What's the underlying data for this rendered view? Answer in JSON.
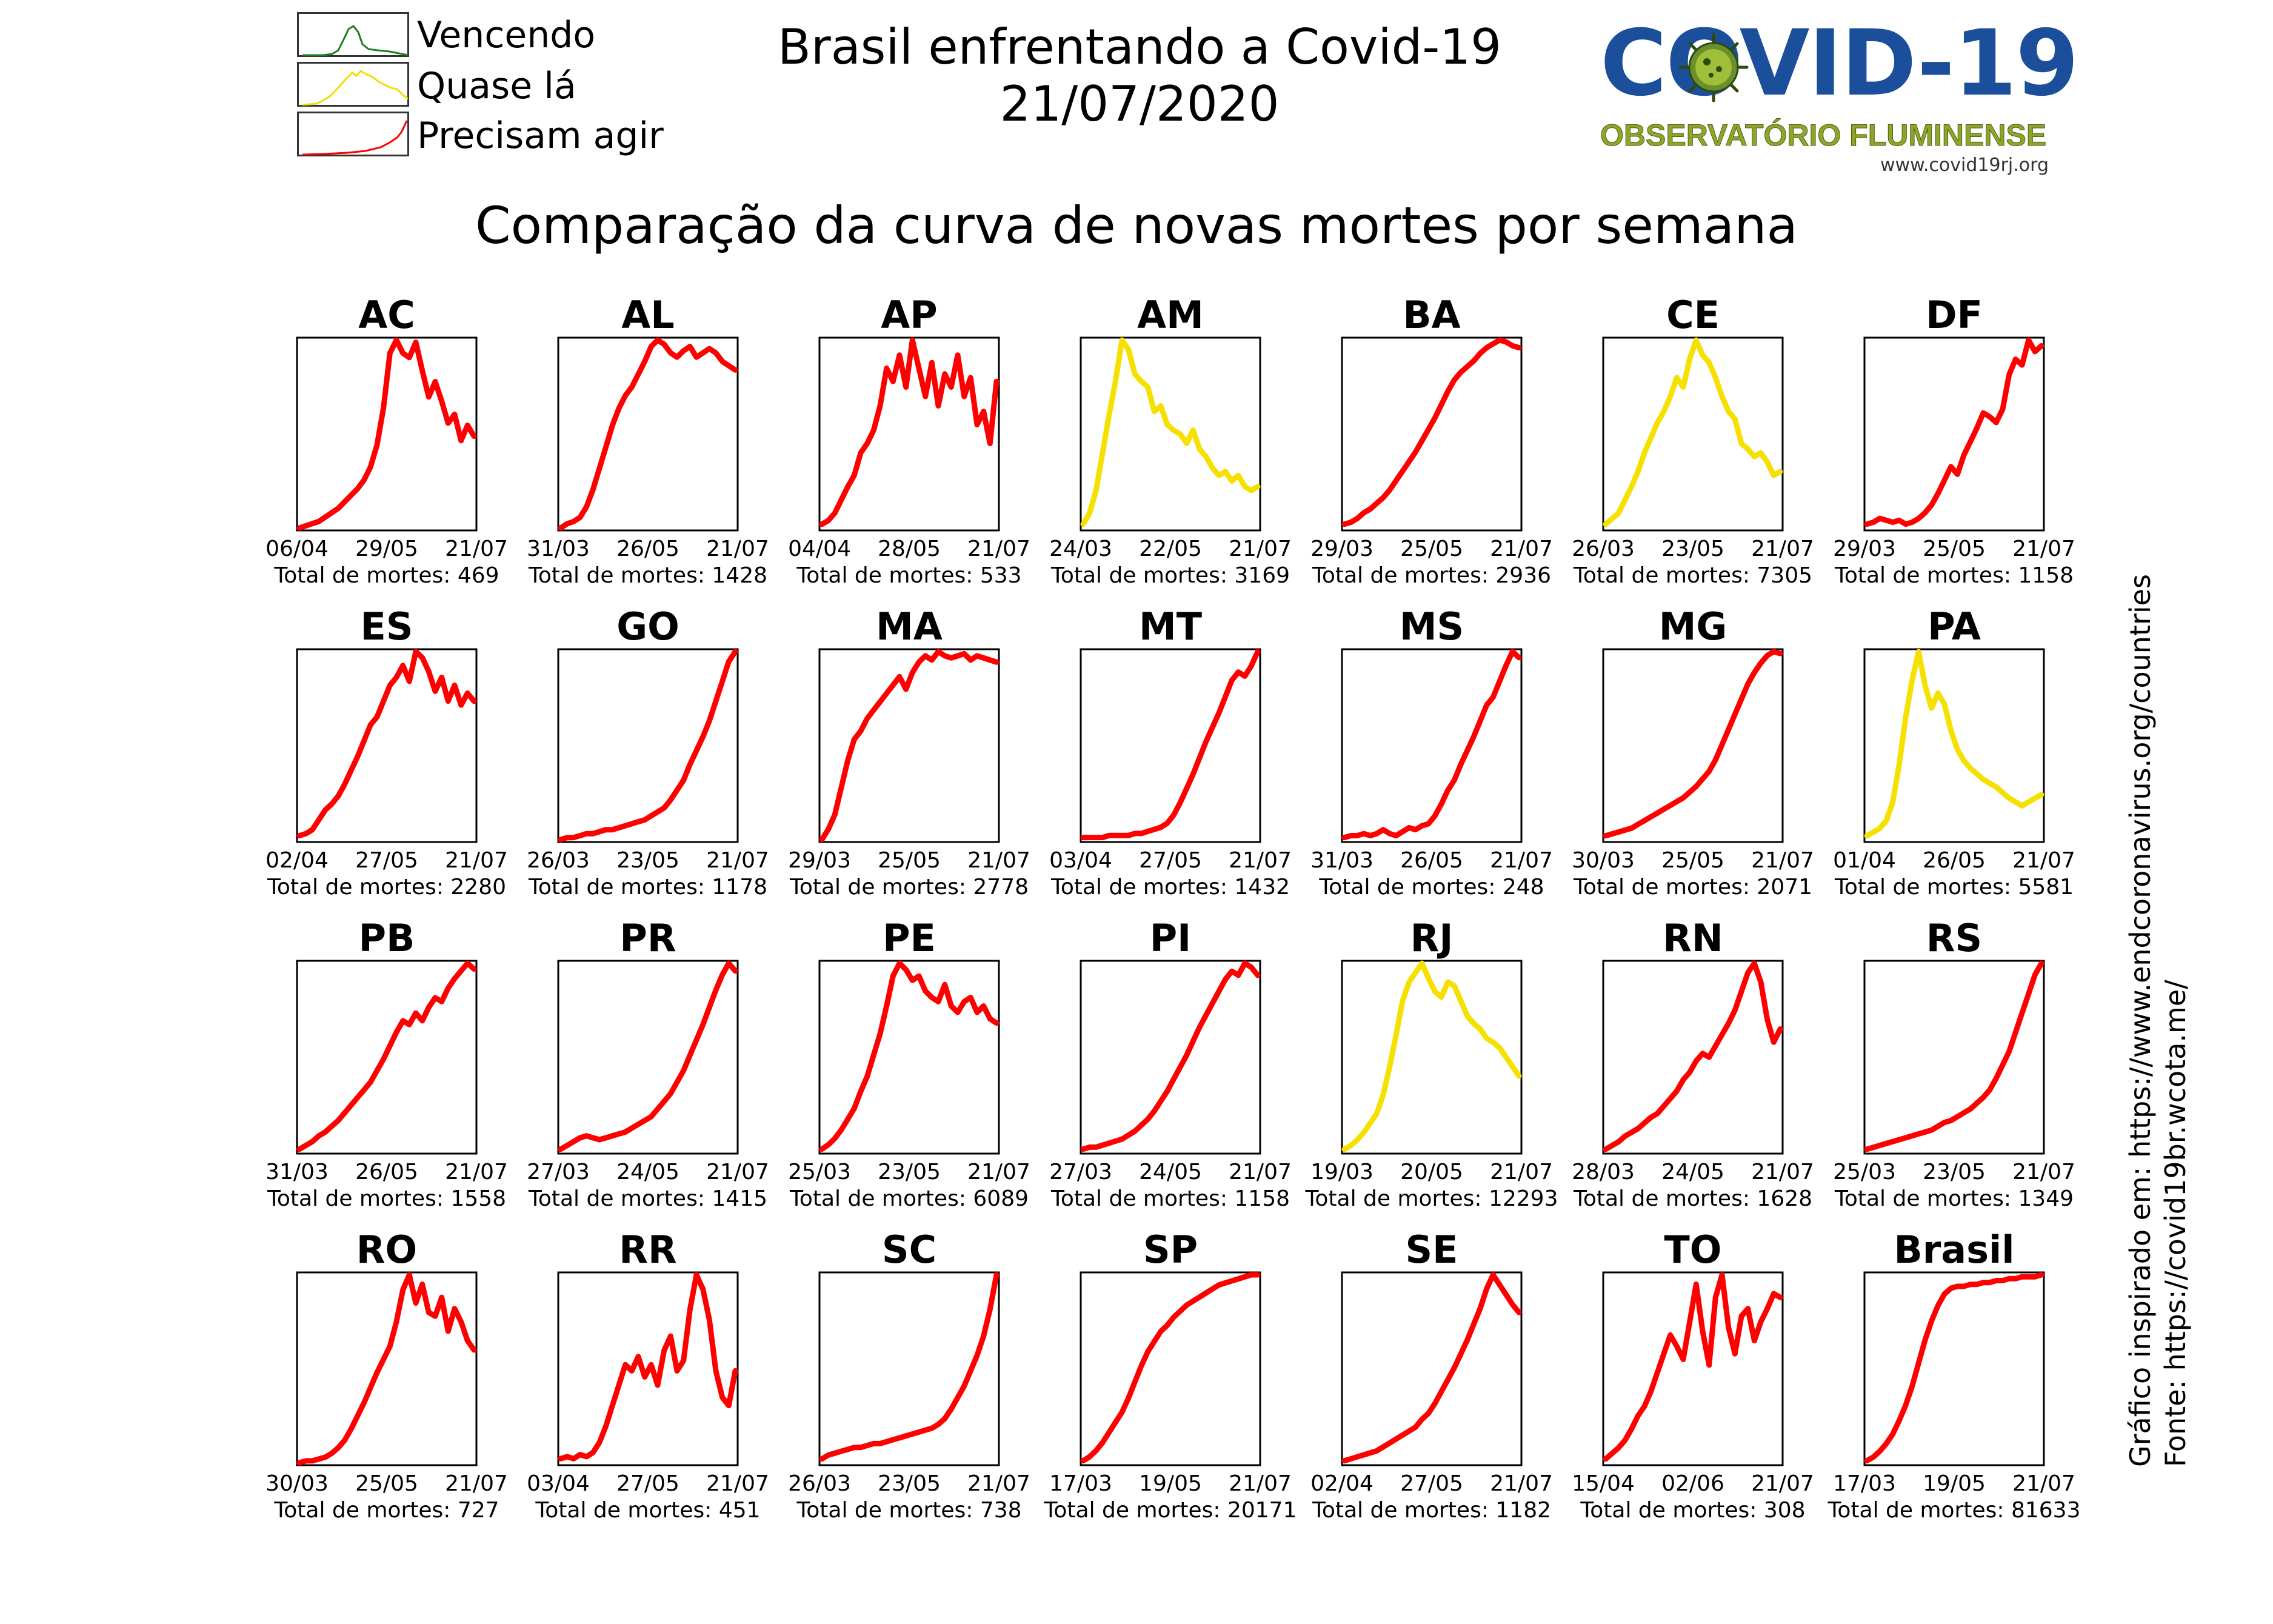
{
  "title": "Brasil enfrentando a Covid-19",
  "date": "21/07/2020",
  "subtitle": "Comparação da curva de novas mortes por semana",
  "legend": [
    {
      "label": "Vencendo",
      "color": "#1a7f1a"
    },
    {
      "label": "Quase lá",
      "color": "#f0e000"
    },
    {
      "label": "Precisam agir",
      "color": "#ff0000"
    }
  ],
  "logo": {
    "text": "COVID-19",
    "subtitle": "OBSERVATÓRIO FLUMINENSE",
    "url": "www.covid19rj.org"
  },
  "credits": {
    "inspired": "Gráfico inspirado em: https://www.endcoronavirus.org/countries",
    "source": "Fonte: https://covid19br.wcota.me/"
  },
  "total_prefix": "Total de mortes: ",
  "colors": {
    "red": "#ff0000",
    "yellow": "#f5e000",
    "green": "#1a7f1a"
  },
  "chart_data": [
    {
      "type": "line",
      "title": "AC",
      "status": "red",
      "x_ticks": [
        "06/04",
        "29/05",
        "21/07"
      ],
      "total": "469",
      "values": [
        0,
        1,
        2,
        3,
        5,
        7,
        9,
        12,
        15,
        18,
        22,
        28,
        38,
        55,
        80,
        86,
        80,
        78,
        85,
        72,
        60,
        67,
        58,
        48,
        52,
        40,
        47,
        42
      ]
    },
    {
      "type": "line",
      "title": "AL",
      "status": "red",
      "x_ticks": [
        "31/03",
        "26/05",
        "21/07"
      ],
      "total": "1428",
      "values": [
        0,
        2,
        3,
        5,
        10,
        18,
        28,
        38,
        48,
        56,
        62,
        66,
        72,
        78,
        85,
        88,
        86,
        82,
        80,
        83,
        85,
        80,
        82,
        84,
        82,
        78,
        76,
        74
      ]
    },
    {
      "type": "line",
      "title": "AP",
      "status": "red",
      "x_ticks": [
        "04/04",
        "28/05",
        "21/07"
      ],
      "total": "533",
      "values": [
        2,
        4,
        8,
        15,
        22,
        28,
        40,
        45,
        52,
        65,
        85,
        78,
        92,
        75,
        100,
        85,
        70,
        88,
        65,
        82,
        75,
        92,
        70,
        80,
        55,
        62,
        45,
        78
      ]
    },
    {
      "type": "line",
      "title": "AM",
      "status": "yellow",
      "x_ticks": [
        "24/03",
        "22/05",
        "21/07"
      ],
      "total": "3169",
      "values": [
        2,
        8,
        20,
        40,
        60,
        78,
        100,
        95,
        82,
        78,
        75,
        62,
        65,
        55,
        52,
        50,
        45,
        52,
        42,
        38,
        32,
        28,
        30,
        25,
        28,
        22,
        20,
        22
      ]
    },
    {
      "type": "line",
      "title": "BA",
      "status": "red",
      "x_ticks": [
        "29/03",
        "25/05",
        "21/07"
      ],
      "total": "2936",
      "values": [
        2,
        3,
        5,
        8,
        10,
        13,
        16,
        20,
        25,
        30,
        35,
        40,
        46,
        52,
        58,
        65,
        72,
        78,
        82,
        85,
        88,
        92,
        95,
        97,
        99,
        98,
        96,
        95
      ]
    },
    {
      "type": "line",
      "title": "CE",
      "status": "yellow",
      "x_ticks": [
        "26/03",
        "23/05",
        "21/07"
      ],
      "total": "7305",
      "values": [
        2,
        5,
        8,
        15,
        22,
        30,
        40,
        48,
        56,
        62,
        70,
        80,
        75,
        90,
        100,
        92,
        88,
        80,
        70,
        62,
        58,
        45,
        42,
        38,
        40,
        35,
        28,
        30
      ]
    },
    {
      "type": "line",
      "title": "DF",
      "status": "red",
      "x_ticks": [
        "29/03",
        "25/05",
        "21/07"
      ],
      "total": "1158",
      "values": [
        2,
        3,
        5,
        4,
        3,
        4,
        2,
        3,
        5,
        8,
        12,
        18,
        25,
        32,
        28,
        38,
        45,
        52,
        60,
        58,
        55,
        62,
        80,
        88,
        85,
        98,
        92,
        95
      ]
    },
    {
      "type": "line",
      "title": "ES",
      "status": "red",
      "x_ticks": [
        "02/04",
        "27/05",
        "21/07"
      ],
      "total": "2280",
      "values": [
        2,
        3,
        5,
        10,
        15,
        18,
        22,
        28,
        35,
        42,
        50,
        58,
        62,
        70,
        78,
        82,
        88,
        80,
        95,
        92,
        85,
        75,
        82,
        70,
        78,
        68,
        74,
        70
      ]
    },
    {
      "type": "line",
      "title": "GO",
      "status": "red",
      "x_ticks": [
        "26/03",
        "23/05",
        "21/07"
      ],
      "total": "1178",
      "values": [
        0,
        1,
        1,
        2,
        3,
        3,
        4,
        5,
        5,
        6,
        7,
        8,
        9,
        10,
        12,
        14,
        16,
        20,
        25,
        30,
        38,
        45,
        52,
        60,
        70,
        80,
        90,
        95
      ]
    },
    {
      "type": "line",
      "title": "MA",
      "status": "red",
      "x_ticks": [
        "29/03",
        "25/05",
        "21/07"
      ],
      "total": "2778",
      "values": [
        0,
        5,
        12,
        25,
        38,
        48,
        52,
        58,
        62,
        66,
        70,
        74,
        78,
        72,
        80,
        85,
        88,
        86,
        90,
        88,
        87,
        88,
        89,
        86,
        88,
        87,
        86,
        85
      ]
    },
    {
      "type": "line",
      "title": "MT",
      "status": "red",
      "x_ticks": [
        "03/04",
        "27/05",
        "21/07"
      ],
      "total": "1432",
      "values": [
        1,
        1,
        1,
        1,
        2,
        2,
        2,
        2,
        3,
        3,
        4,
        5,
        6,
        8,
        12,
        18,
        25,
        32,
        40,
        48,
        55,
        62,
        70,
        78,
        82,
        80,
        85,
        92
      ]
    },
    {
      "type": "line",
      "title": "MS",
      "status": "red",
      "x_ticks": [
        "31/03",
        "26/05",
        "21/07"
      ],
      "total": "248",
      "values": [
        1,
        2,
        2,
        3,
        2,
        3,
        5,
        3,
        2,
        4,
        6,
        5,
        7,
        8,
        12,
        18,
        25,
        30,
        38,
        45,
        52,
        60,
        68,
        72,
        80,
        88,
        95,
        92
      ]
    },
    {
      "type": "line",
      "title": "MG",
      "status": "red",
      "x_ticks": [
        "30/03",
        "25/05",
        "21/07"
      ],
      "total": "2071",
      "values": [
        2,
        3,
        4,
        5,
        6,
        8,
        10,
        12,
        14,
        16,
        18,
        20,
        22,
        25,
        28,
        32,
        36,
        42,
        50,
        58,
        66,
        74,
        82,
        88,
        93,
        97,
        99,
        98
      ]
    },
    {
      "type": "line",
      "title": "PA",
      "status": "yellow",
      "x_ticks": [
        "01/04",
        "26/05",
        "21/07"
      ],
      "total": "5581",
      "values": [
        2,
        4,
        6,
        10,
        20,
        40,
        65,
        85,
        100,
        82,
        70,
        78,
        72,
        58,
        48,
        42,
        38,
        35,
        32,
        30,
        28,
        25,
        22,
        20,
        18,
        20,
        22,
        24
      ]
    },
    {
      "type": "line",
      "title": "PB",
      "status": "red",
      "x_ticks": [
        "31/03",
        "26/05",
        "21/07"
      ],
      "total": "1558",
      "values": [
        1,
        3,
        5,
        8,
        10,
        13,
        16,
        20,
        24,
        28,
        32,
        36,
        42,
        48,
        55,
        62,
        68,
        66,
        72,
        68,
        75,
        80,
        78,
        85,
        90,
        94,
        98,
        95
      ]
    },
    {
      "type": "line",
      "title": "PR",
      "status": "red",
      "x_ticks": [
        "27/03",
        "24/05",
        "21/07"
      ],
      "total": "1415",
      "values": [
        1,
        3,
        5,
        7,
        8,
        7,
        6,
        7,
        8,
        9,
        10,
        12,
        14,
        16,
        18,
        22,
        26,
        30,
        36,
        42,
        50,
        58,
        66,
        75,
        84,
        92,
        98,
        94
      ]
    },
    {
      "type": "line",
      "title": "PE",
      "status": "red",
      "x_ticks": [
        "25/03",
        "23/05",
        "21/07"
      ],
      "total": "6089",
      "values": [
        1,
        3,
        6,
        10,
        15,
        20,
        28,
        35,
        45,
        55,
        68,
        82,
        88,
        85,
        80,
        82,
        75,
        72,
        70,
        78,
        68,
        65,
        70,
        72,
        65,
        68,
        62,
        60
      ]
    },
    {
      "type": "line",
      "title": "PI",
      "status": "red",
      "x_ticks": [
        "27/03",
        "24/05",
        "21/07"
      ],
      "total": "1158",
      "values": [
        1,
        2,
        2,
        3,
        4,
        5,
        6,
        8,
        10,
        13,
        16,
        20,
        25,
        30,
        36,
        42,
        48,
        55,
        62,
        68,
        74,
        80,
        86,
        90,
        88,
        94,
        92,
        88
      ]
    },
    {
      "type": "line",
      "title": "RJ",
      "status": "yellow",
      "x_ticks": [
        "19/03",
        "20/05",
        "21/07"
      ],
      "total": "12293",
      "values": [
        1,
        3,
        6,
        10,
        15,
        20,
        30,
        45,
        62,
        80,
        90,
        95,
        100,
        92,
        85,
        82,
        90,
        88,
        80,
        72,
        68,
        65,
        60,
        58,
        55,
        50,
        45,
        40
      ]
    },
    {
      "type": "line",
      "title": "RN",
      "status": "red",
      "x_ticks": [
        "28/03",
        "24/05",
        "21/07"
      ],
      "total": "1628",
      "values": [
        1,
        3,
        5,
        8,
        10,
        12,
        15,
        18,
        20,
        24,
        28,
        32,
        38,
        42,
        48,
        52,
        50,
        56,
        62,
        68,
        75,
        85,
        95,
        100,
        90,
        70,
        58,
        65
      ]
    },
    {
      "type": "line",
      "title": "RS",
      "status": "red",
      "x_ticks": [
        "25/03",
        "23/05",
        "21/07"
      ],
      "total": "1349",
      "values": [
        1,
        2,
        3,
        4,
        5,
        6,
        7,
        8,
        9,
        10,
        11,
        13,
        15,
        16,
        18,
        20,
        22,
        25,
        28,
        32,
        38,
        45,
        52,
        62,
        72,
        82,
        92,
        98
      ]
    },
    {
      "type": "line",
      "title": "RO",
      "status": "red",
      "x_ticks": [
        "30/03",
        "25/05",
        "21/07"
      ],
      "total": "727",
      "values": [
        0,
        1,
        1,
        2,
        3,
        5,
        8,
        12,
        18,
        25,
        32,
        40,
        48,
        55,
        62,
        75,
        92,
        100,
        85,
        95,
        80,
        78,
        88,
        70,
        82,
        75,
        65,
        60
      ]
    },
    {
      "type": "line",
      "title": "RR",
      "status": "red",
      "x_ticks": [
        "03/04",
        "27/05",
        "21/07"
      ],
      "total": "451",
      "values": [
        2,
        3,
        2,
        4,
        3,
        5,
        10,
        18,
        28,
        38,
        48,
        45,
        52,
        42,
        48,
        38,
        55,
        62,
        45,
        50,
        75,
        92,
        85,
        70,
        45,
        32,
        28,
        45
      ]
    },
    {
      "type": "line",
      "title": "SC",
      "status": "red",
      "x_ticks": [
        "26/03",
        "23/05",
        "21/07"
      ],
      "total": "738",
      "values": [
        2,
        4,
        5,
        6,
        7,
        8,
        8,
        9,
        10,
        10,
        11,
        12,
        13,
        14,
        15,
        16,
        17,
        18,
        20,
        23,
        28,
        34,
        40,
        48,
        56,
        66,
        80,
        98
      ]
    },
    {
      "type": "line",
      "title": "SP",
      "status": "red",
      "x_ticks": [
        "17/03",
        "19/05",
        "21/07"
      ],
      "total": "20171",
      "values": [
        1,
        3,
        6,
        10,
        15,
        20,
        25,
        32,
        40,
        48,
        55,
        60,
        65,
        68,
        72,
        75,
        78,
        80,
        82,
        84,
        86,
        88,
        89,
        90,
        91,
        92,
        93,
        93
      ]
    },
    {
      "type": "line",
      "title": "SE",
      "status": "red",
      "x_ticks": [
        "02/04",
        "27/05",
        "21/07"
      ],
      "total": "1182",
      "values": [
        1,
        2,
        3,
        4,
        5,
        6,
        8,
        10,
        12,
        14,
        16,
        18,
        22,
        25,
        30,
        36,
        42,
        48,
        55,
        62,
        70,
        78,
        88,
        95,
        90,
        85,
        80,
        76
      ]
    },
    {
      "type": "line",
      "title": "TO",
      "status": "red",
      "x_ticks": [
        "15/04",
        "02/06",
        "21/07"
      ],
      "total": "308",
      "values": [
        2,
        5,
        8,
        12,
        18,
        25,
        30,
        38,
        48,
        58,
        68,
        62,
        55,
        75,
        95,
        70,
        52,
        88,
        100,
        72,
        58,
        78,
        82,
        65,
        75,
        82,
        90,
        88
      ]
    },
    {
      "type": "line",
      "title": "Brasil",
      "status": "red",
      "x_ticks": [
        "17/03",
        "19/05",
        "21/07"
      ],
      "total": "81633",
      "values": [
        1,
        3,
        6,
        10,
        15,
        22,
        30,
        40,
        52,
        64,
        74,
        82,
        88,
        91,
        92,
        92,
        93,
        93,
        94,
        94,
        95,
        95,
        96,
        96,
        97,
        97,
        97,
        98
      ]
    }
  ]
}
